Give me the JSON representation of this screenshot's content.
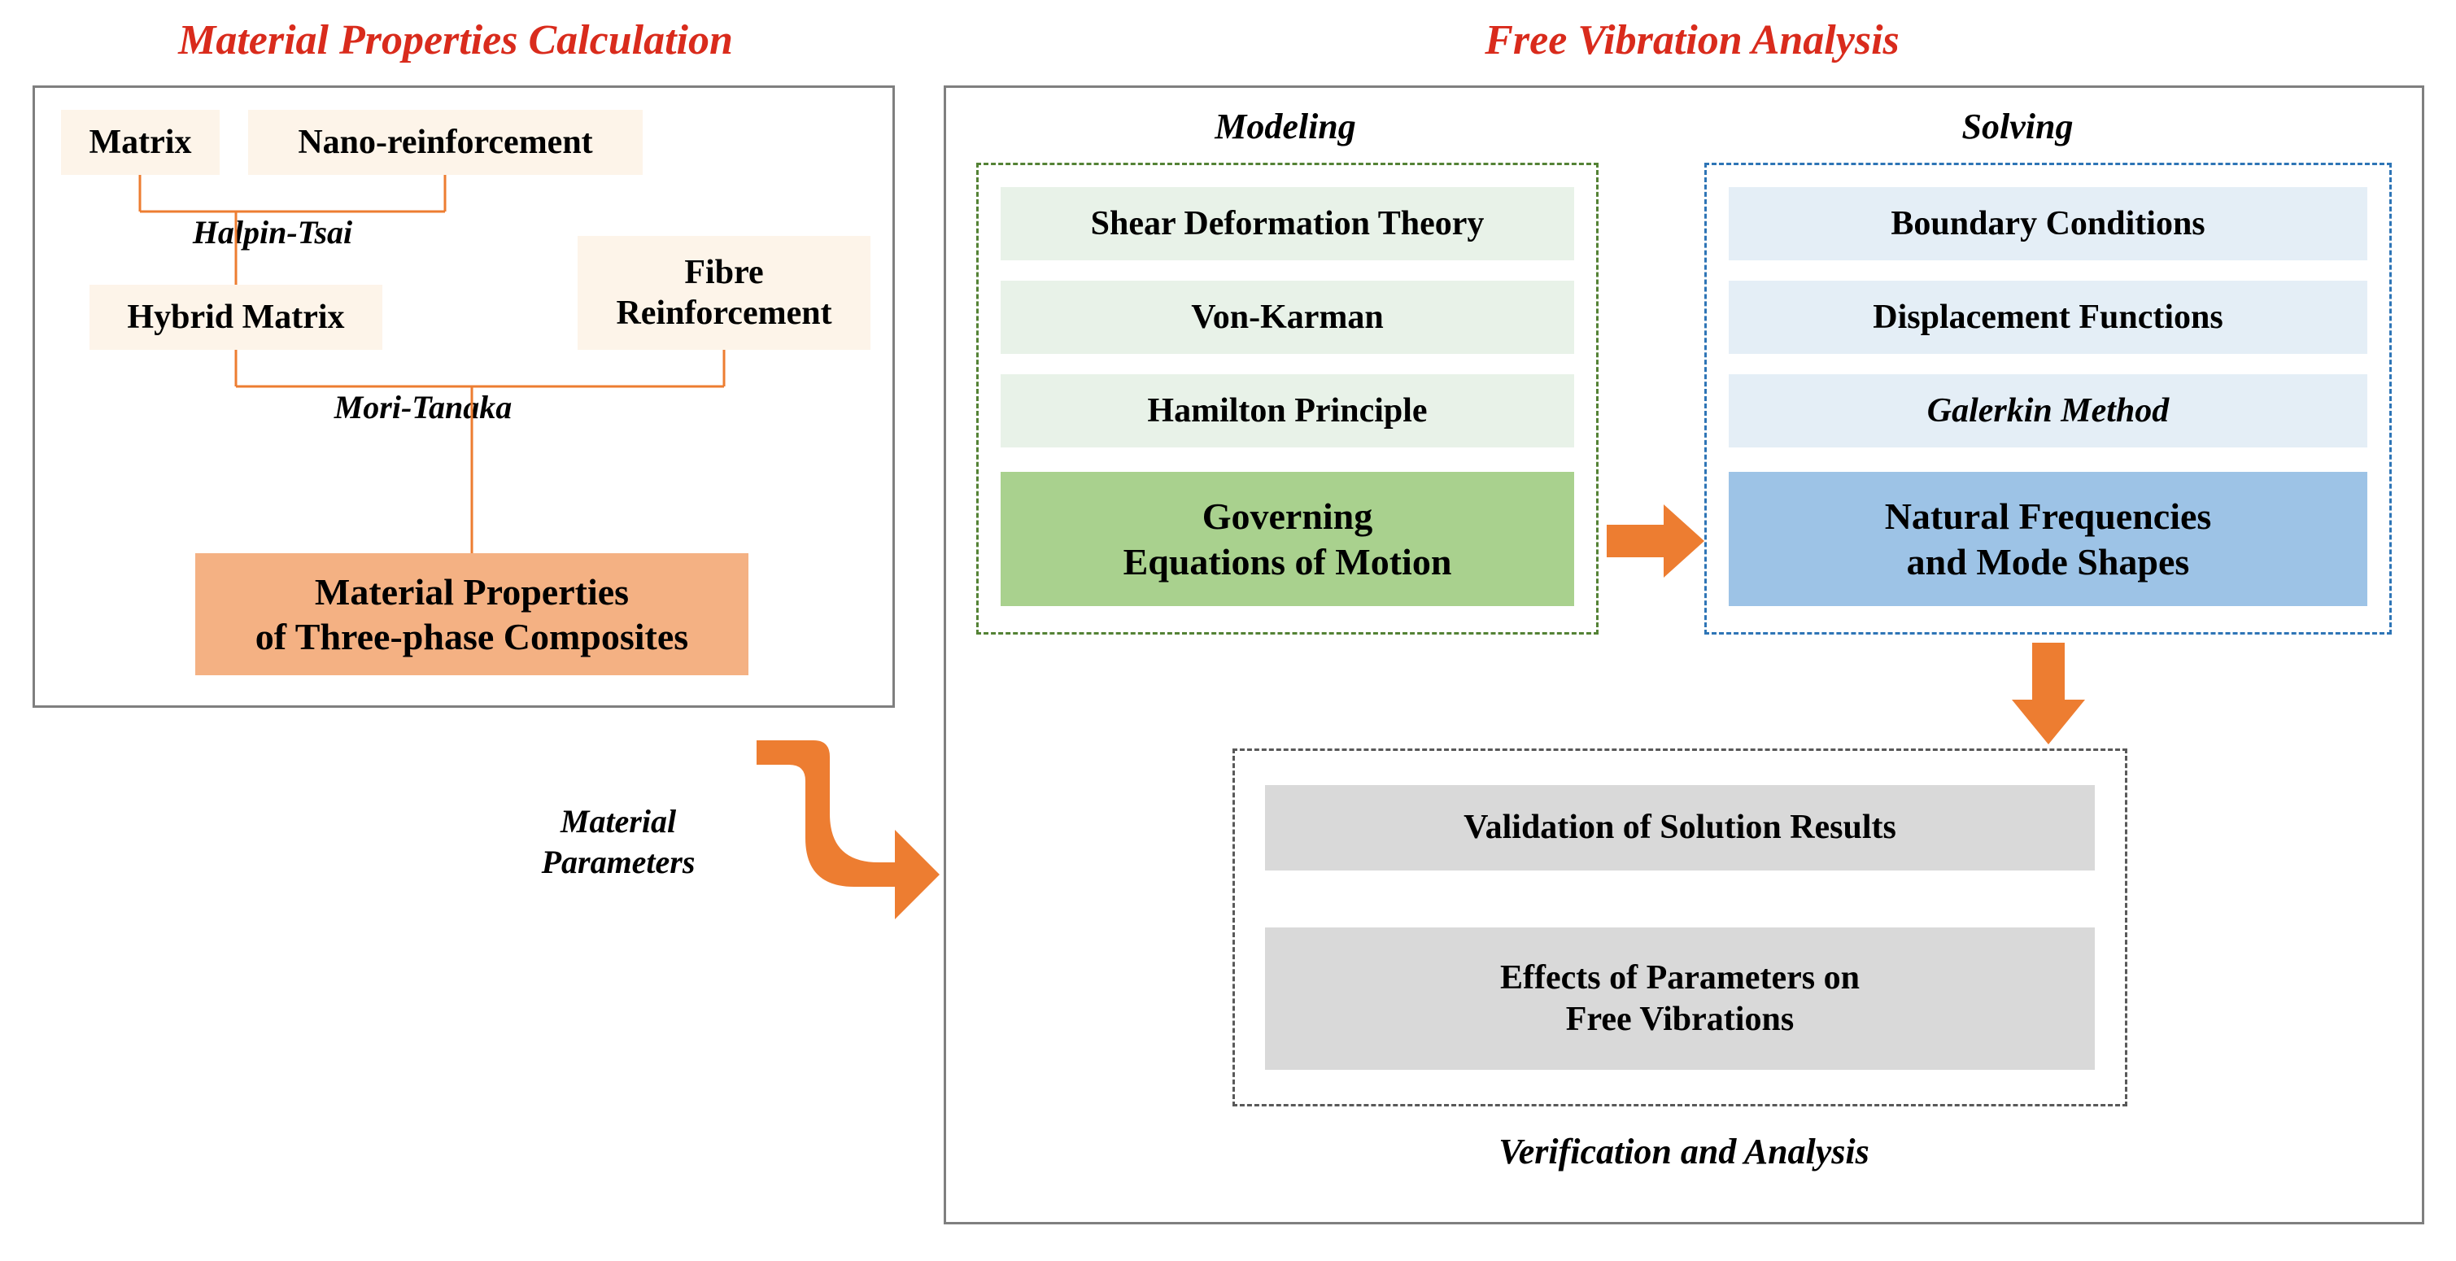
{
  "colors": {
    "title_red": "#d92b1c",
    "panel_border": "#7f7f7f",
    "text_black": "#000000",
    "cream_bg": "#fdf4e9",
    "orange_bg": "#f4b183",
    "orange_line": "#ed7d31",
    "green_border": "#548235",
    "green_light": "#e8f2e8",
    "green_med": "#a9d18e",
    "blue_border": "#2e75b6",
    "blue_light": "#e4eef6",
    "blue_med": "#9dc3e6",
    "grey_border": "#595959",
    "grey_light": "#d9d9d9",
    "arrow_orange": "#ed7d31"
  },
  "fonts": {
    "title_size": 52,
    "subtitle_size": 44,
    "box_size": 42,
    "label_size": 40
  },
  "left_title": "Material Properties Calculation",
  "right_title": "Free Vibration Analysis",
  "left_panel": {
    "matrix": "Matrix",
    "nano": "Nano-reinforcement",
    "halpin": "Halpin-Tsai",
    "hybrid": "Hybrid Matrix",
    "fibre": "Fibre\nReinforcement",
    "mori": "Mori-Tanaka",
    "result": "Material Properties\nof Three-phase Composites"
  },
  "connector1": "Material\nParameters",
  "modeling": {
    "title": "Modeling",
    "items": [
      "Shear Deformation Theory",
      "Von-Karman",
      "Hamilton Principle"
    ],
    "result": "Governing\nEquations of Motion"
  },
  "solving": {
    "title": "Solving",
    "items": [
      "Boundary Conditions",
      "Displacement Functions"
    ],
    "italic_item": "Galerkin Method",
    "result": "Natural Frequencies\nand Mode Shapes"
  },
  "verification": {
    "title": "Verification and Analysis",
    "items": [
      "Validation of Solution Results",
      "Effects of Parameters on\nFree Vibrations"
    ]
  }
}
